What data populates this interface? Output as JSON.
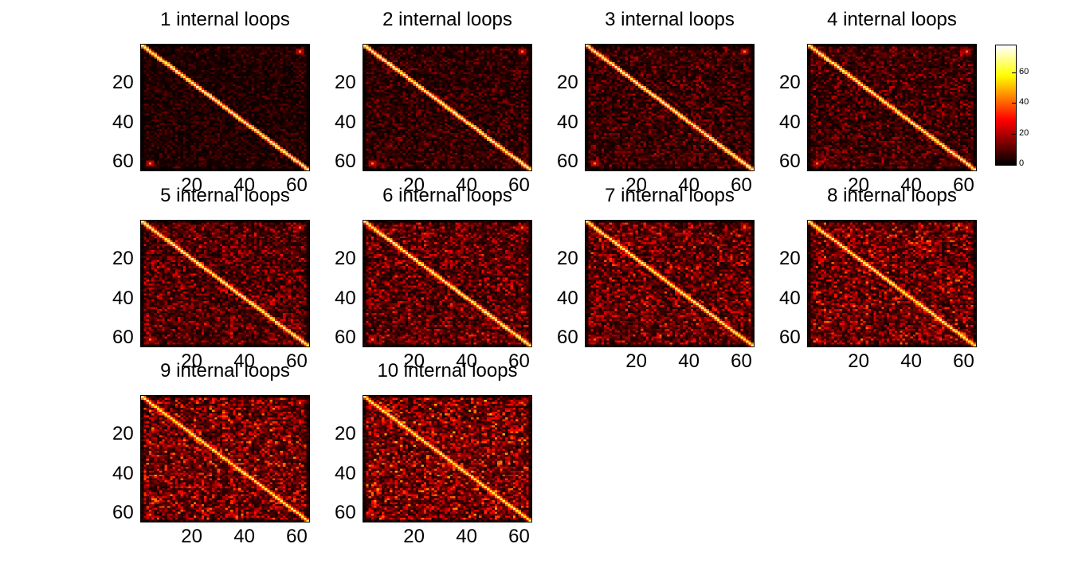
{
  "chart_data": {
    "type": "heatmap",
    "colormap": "hot",
    "matrix_size": [
      64,
      64
    ],
    "description_of_values": "diagonal near colorbar max; small off-diagonal corner spots; background noise increasing with loop count",
    "xticks": [
      20,
      40,
      60
    ],
    "yticks": [
      20,
      40,
      60
    ],
    "colorbar": {
      "ticks": [
        0,
        20,
        40,
        60
      ],
      "range": [
        0,
        78
      ]
    },
    "panels": [
      {
        "title": "1 internal loops",
        "diag_peak": 72,
        "corner_peak": 45,
        "noise_mean": 4
      },
      {
        "title": "2 internal loops",
        "diag_peak": 72,
        "corner_peak": 45,
        "noise_mean": 6
      },
      {
        "title": "3 internal loops",
        "diag_peak": 72,
        "corner_peak": 45,
        "noise_mean": 7
      },
      {
        "title": "4 internal loops",
        "diag_peak": 70,
        "corner_peak": 42,
        "noise_mean": 8
      },
      {
        "title": "5 internal loops",
        "diag_peak": 70,
        "corner_peak": 42,
        "noise_mean": 10
      },
      {
        "title": "6 internal loops",
        "diag_peak": 70,
        "corner_peak": 42,
        "noise_mean": 11
      },
      {
        "title": "7 internal loops",
        "diag_peak": 68,
        "corner_peak": 40,
        "noise_mean": 12
      },
      {
        "title": "8 internal loops",
        "diag_peak": 68,
        "corner_peak": 40,
        "noise_mean": 13
      },
      {
        "title": "9 internal loops",
        "diag_peak": 66,
        "corner_peak": 40,
        "noise_mean": 14
      },
      {
        "title": "10 internal loops",
        "diag_peak": 66,
        "corner_peak": 40,
        "noise_mean": 15
      }
    ]
  }
}
